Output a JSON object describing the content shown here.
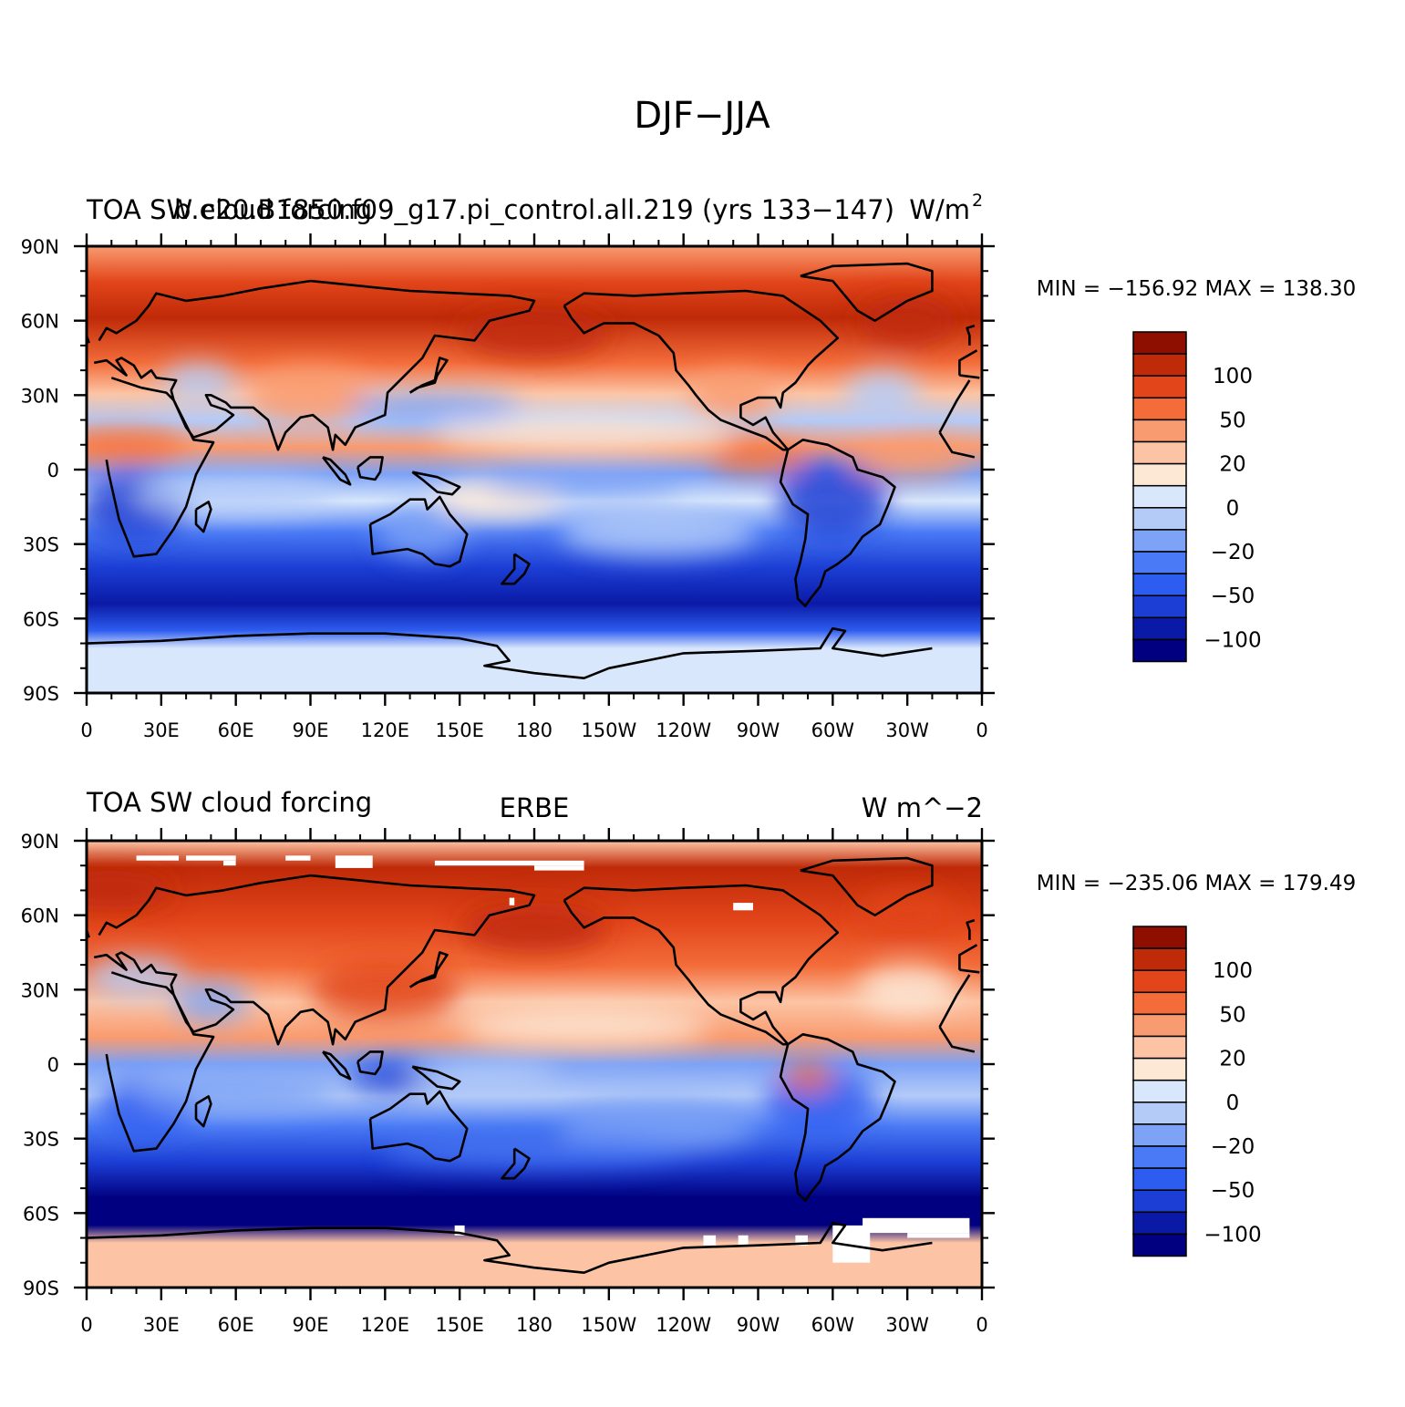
{
  "figure": {
    "title": "DJF−JJA"
  },
  "panels": [
    {
      "id": "model",
      "left_title": "TOA SW cloud forcing",
      "center_title": "b.e20.B1850.f09_g17.pi_control.all.219 (yrs 133−147)",
      "right_title": "W/m",
      "right_title_superscript": "2",
      "stats": "MIN = −156.92 MAX = 138.30"
    },
    {
      "id": "obs",
      "left_title": "TOA SW cloud forcing",
      "center_title": "ERBE",
      "right_title": "W m^−2",
      "right_title_superscript": "",
      "stats": "MIN = −235.06 MAX = 179.49"
    }
  ],
  "axes": {
    "lat_labels": [
      "90N",
      "60N",
      "30N",
      "0",
      "30S",
      "60S",
      "90S"
    ],
    "lon_labels": [
      "0",
      "30E",
      "60E",
      "90E",
      "120E",
      "150E",
      "180",
      "150W",
      "120W",
      "90W",
      "60W",
      "30W",
      "0"
    ]
  },
  "colorbar": {
    "colors": [
      "#000080",
      "#0a1aa6",
      "#1c3ed4",
      "#2d5cf0",
      "#4a7af5",
      "#7da2f6",
      "#b4cbf8",
      "#d8e7fb",
      "#fde8d6",
      "#fcc4a4",
      "#f99b70",
      "#f36c3a",
      "#e2451a",
      "#bf2a08",
      "#8e0e00"
    ],
    "labels": [
      "100",
      "50",
      "20",
      "0",
      "−20",
      "−50",
      "−100"
    ]
  },
  "chart_data": [
    {
      "type": "heatmap",
      "title": "b.e20.B1850.f09_g17.pi_control.all.219 (yrs 133−147)",
      "variable": "TOA SW cloud forcing",
      "units": "W/m^2",
      "season": "DJF−JJA",
      "min": -156.92,
      "max": 138.3,
      "contour_levels": [
        -100,
        -50,
        -20,
        0,
        20,
        50,
        100
      ],
      "lat_range": [
        -90,
        90
      ],
      "lon_range": [
        0,
        360
      ]
    },
    {
      "type": "heatmap",
      "title": "ERBE",
      "variable": "TOA SW cloud forcing",
      "units": "W m^−2",
      "season": "DJF−JJA",
      "min": -235.06,
      "max": 179.49,
      "contour_levels": [
        -100,
        -50,
        -20,
        0,
        20,
        50,
        100
      ],
      "lat_range": [
        -90,
        90
      ],
      "lon_range": [
        0,
        360
      ]
    }
  ]
}
